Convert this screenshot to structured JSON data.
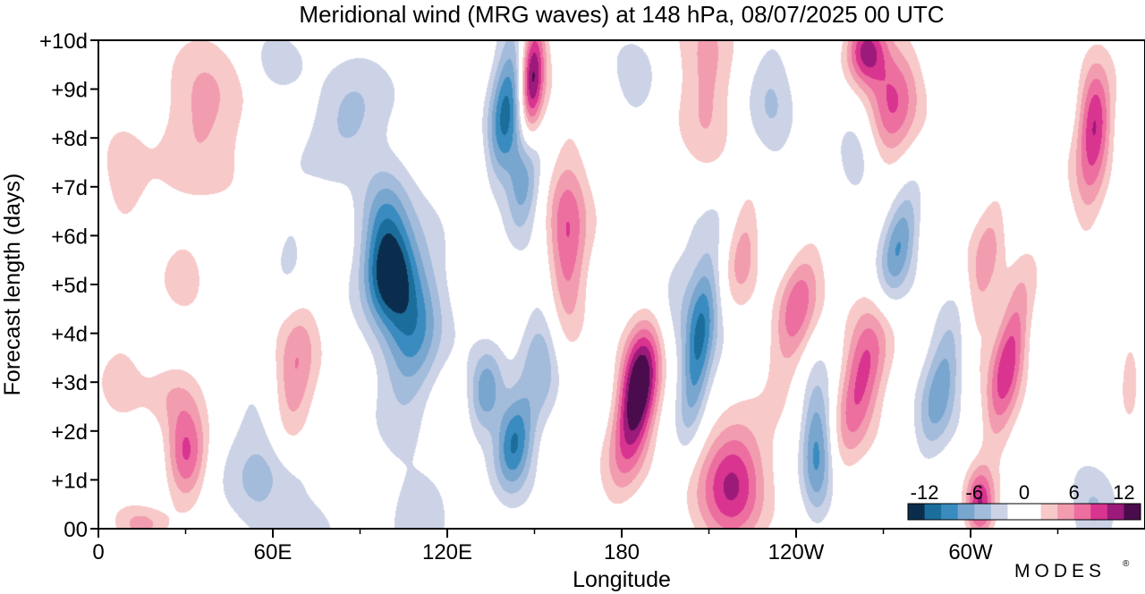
{
  "chart_data": {
    "type": "heatmap",
    "title": "Meridional wind (MRG waves) at  148 hPa,  08/07/2025  00 UTC",
    "xlabel": "Longitude",
    "ylabel": "Forecast length (days)",
    "x_ticks": [
      {
        "lon": 0,
        "label": "0"
      },
      {
        "lon": 60,
        "label": "60E"
      },
      {
        "lon": 120,
        "label": "120E"
      },
      {
        "lon": 180,
        "label": "180"
      },
      {
        "lon": 240,
        "label": "120W"
      },
      {
        "lon": 300,
        "label": "60W"
      }
    ],
    "x_minor_ticks": [
      30,
      90,
      150,
      210,
      270,
      330
    ],
    "xlim": [
      0,
      360
    ],
    "y_ticks": [
      {
        "day": 0,
        "label": "00"
      },
      {
        "day": 1,
        "label": "+1d"
      },
      {
        "day": 2,
        "label": "+2d"
      },
      {
        "day": 3,
        "label": "+3d"
      },
      {
        "day": 4,
        "label": "+4d"
      },
      {
        "day": 5,
        "label": "+5d"
      },
      {
        "day": 6,
        "label": "+6d"
      },
      {
        "day": 7,
        "label": "+7d"
      },
      {
        "day": 8,
        "label": "+8d"
      },
      {
        "day": 9,
        "label": "+9d"
      },
      {
        "day": 10,
        "label": "+10d"
      }
    ],
    "ylim": [
      0,
      10
    ],
    "colorbar": {
      "levels": [
        -14,
        -12,
        -10,
        -8,
        -6,
        -4,
        -2,
        2,
        4,
        6,
        8,
        10,
        12,
        14
      ],
      "colors": [
        "#0b2d4d",
        "#1b6e9c",
        "#3a8cc0",
        "#78a6cf",
        "#a4bcdb",
        "#cdd3e7",
        "#ffffff",
        "#f8c9c9",
        "#f29cb0",
        "#ec6fa0",
        "#d83490",
        "#9c1a7a",
        "#4a0c4c"
      ],
      "tick_labels": [
        {
          "value": -12,
          "label": "-12"
        },
        {
          "value": -6,
          "label": "-6"
        },
        {
          "value": 0,
          "label": "0"
        },
        {
          "value": 6,
          "label": "6"
        },
        {
          "value": 12,
          "label": "12"
        }
      ]
    },
    "features": [
      {
        "lon": 100,
        "day": 5.2,
        "value": -12,
        "sx": 6,
        "sy": 0.7,
        "tilt": -10
      },
      {
        "lon": 108,
        "day": 4.0,
        "value": -9,
        "sx": 7,
        "sy": 1.2,
        "tilt": -10
      },
      {
        "lon": 98,
        "day": 6.3,
        "value": -7,
        "sx": 6,
        "sy": 0.8,
        "tilt": -8
      },
      {
        "lon": 86,
        "day": 8.4,
        "value": -5.5,
        "sx": 9,
        "sy": 0.8,
        "tilt": 0
      },
      {
        "lon": 140,
        "day": 8.6,
        "value": -10,
        "sx": 4,
        "sy": 1.1,
        "tilt": -12
      },
      {
        "lon": 146,
        "day": 7.1,
        "value": -7.5,
        "sx": 4,
        "sy": 0.8,
        "tilt": -10
      },
      {
        "lon": 143,
        "day": 1.8,
        "value": -10,
        "sx": 4.5,
        "sy": 0.7,
        "tilt": -12
      },
      {
        "lon": 133,
        "day": 2.8,
        "value": -7,
        "sx": 4,
        "sy": 0.6,
        "tilt": -10
      },
      {
        "lon": 60,
        "day": 0.8,
        "value": -6,
        "sx": 14,
        "sy": 0.9,
        "tilt": -30
      },
      {
        "lon": 112,
        "day": 0.3,
        "value": -4,
        "sx": 8,
        "sy": 0.6,
        "tilt": 0
      },
      {
        "lon": 152,
        "day": 3.5,
        "value": -6,
        "sx": 5,
        "sy": 1.0,
        "tilt": 0
      },
      {
        "lon": 206,
        "day": 3.6,
        "value": -8,
        "sx": 3.5,
        "sy": 1.3,
        "tilt": -12
      },
      {
        "lon": 222,
        "day": 6.0,
        "value": -3,
        "sx": 10,
        "sy": 1.0,
        "tilt": 0
      },
      {
        "lon": 247,
        "day": 1.6,
        "value": -9,
        "sx": 4,
        "sy": 1.0,
        "tilt": 0
      },
      {
        "lon": 275,
        "day": 5.8,
        "value": -8,
        "sx": 4,
        "sy": 0.9,
        "tilt": -22
      },
      {
        "lon": 290,
        "day": 3.0,
        "value": -7,
        "sx": 4.5,
        "sy": 1.2,
        "tilt": -22
      },
      {
        "lon": 262,
        "day": 7.5,
        "value": -4,
        "sx": 6,
        "sy": 0.8,
        "tilt": -20
      },
      {
        "lon": 232,
        "day": 9.0,
        "value": -4,
        "sx": 6,
        "sy": 1.1,
        "tilt": 0
      },
      {
        "lon": 185,
        "day": 9.2,
        "value": -3,
        "sx": 5,
        "sy": 0.6,
        "tilt": 0
      },
      {
        "lon": 62,
        "day": 9.5,
        "value": -3,
        "sx": 6,
        "sy": 0.4,
        "tilt": 0
      },
      {
        "lon": 342,
        "day": 0.3,
        "value": -4,
        "sx": 6,
        "sy": 0.6,
        "tilt": 0
      },
      {
        "lon": 66,
        "day": 5.6,
        "value": -3,
        "sx": 5,
        "sy": 1.0,
        "tilt": 0
      },
      {
        "lon": 149,
        "day": 9.2,
        "value": 13,
        "sx": 3,
        "sy": 0.9,
        "tilt": -5
      },
      {
        "lon": 161,
        "day": 5.8,
        "value": 8.5,
        "sx": 5,
        "sy": 1.3,
        "tilt": 0
      },
      {
        "lon": 186,
        "day": 3.0,
        "value": 13,
        "sx": 4.5,
        "sy": 0.9,
        "tilt": -15
      },
      {
        "lon": 182,
        "day": 1.8,
        "value": 6,
        "sx": 5,
        "sy": 1.0,
        "tilt": -20
      },
      {
        "lon": 218,
        "day": 1.0,
        "value": 11,
        "sx": 8,
        "sy": 0.9,
        "tilt": 0
      },
      {
        "lon": 222,
        "day": 5.8,
        "value": 8,
        "sx": 5,
        "sy": 1.0,
        "tilt": -15
      },
      {
        "lon": 240,
        "day": 4.5,
        "value": 8,
        "sx": 5,
        "sy": 1.0,
        "tilt": -20
      },
      {
        "lon": 262,
        "day": 3.0,
        "value": 9,
        "sx": 5,
        "sy": 1.2,
        "tilt": -22
      },
      {
        "lon": 264,
        "day": 9.8,
        "value": 11,
        "sx": 5,
        "sy": 0.5,
        "tilt": -20
      },
      {
        "lon": 272,
        "day": 8.5,
        "value": 8,
        "sx": 6,
        "sy": 1.0,
        "tilt": -22
      },
      {
        "lon": 313,
        "day": 3.5,
        "value": 9,
        "sx": 4,
        "sy": 1.3,
        "tilt": -18
      },
      {
        "lon": 305,
        "day": 5.5,
        "value": 5,
        "sx": 4,
        "sy": 1.3,
        "tilt": -18
      },
      {
        "lon": 343,
        "day": 8.4,
        "value": 9.5,
        "sx": 4,
        "sy": 0.8,
        "tilt": 0
      },
      {
        "lon": 340,
        "day": 7.2,
        "value": 4,
        "sx": 4,
        "sy": 1.0,
        "tilt": 0
      },
      {
        "lon": 210,
        "day": 9.3,
        "value": 5,
        "sx": 7,
        "sy": 1.3,
        "tilt": 0
      },
      {
        "lon": 30,
        "day": 1.5,
        "value": 9,
        "sx": 5,
        "sy": 0.7,
        "tilt": 0
      },
      {
        "lon": 24,
        "day": 2.8,
        "value": 3,
        "sx": 8,
        "sy": 0.5,
        "tilt": 0
      },
      {
        "lon": 67,
        "day": 3.0,
        "value": 6,
        "sx": 5,
        "sy": 1.3,
        "tilt": -10
      },
      {
        "lon": 34,
        "day": 8.3,
        "value": 5,
        "sx": 10,
        "sy": 1.1,
        "tilt": 0
      },
      {
        "lon": 30,
        "day": 5.3,
        "value": 3,
        "sx": 5,
        "sy": 0.5,
        "tilt": 0
      },
      {
        "lon": 8,
        "day": 7.0,
        "value": 3,
        "sx": 5,
        "sy": 0.8,
        "tilt": 0
      },
      {
        "lon": 8,
        "day": 3.2,
        "value": 3,
        "sx": 5,
        "sy": 0.7,
        "tilt": 0
      },
      {
        "lon": 65,
        "day": 0.5,
        "value": 3,
        "sx": 8,
        "sy": 0.4,
        "tilt": 0
      },
      {
        "lon": 15,
        "day": 0.1,
        "value": 4,
        "sx": 6,
        "sy": 0.25,
        "tilt": 0
      },
      {
        "lon": 303,
        "day": 0.5,
        "value": 10,
        "sx": 3.5,
        "sy": 0.5,
        "tilt": 0
      },
      {
        "lon": 355,
        "day": 3.2,
        "value": 3,
        "sx": 3,
        "sy": 0.6,
        "tilt": 0
      },
      {
        "lon": 205,
        "day": 4.5,
        "value": -2.5,
        "sx": 12,
        "sy": 1.5,
        "tilt": 0
      }
    ],
    "grid": false,
    "legend_placement": "bottom-right"
  },
  "branding": {
    "logo_text": "MODES",
    "logo_mark": "®"
  }
}
